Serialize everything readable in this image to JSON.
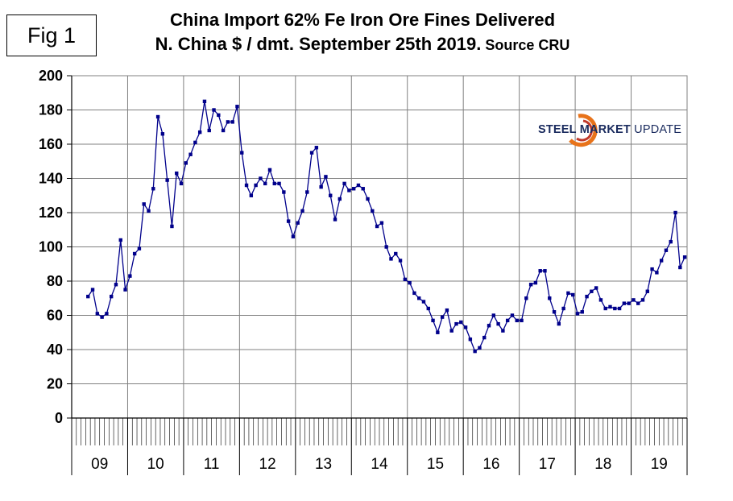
{
  "fig_label": "Fig 1",
  "logo": {
    "part1": "STEEL MARKET",
    "part2": " UPDATE"
  },
  "chart_data": {
    "type": "line",
    "title_line1": "China Import 62% Fe Iron Ore Fines Delivered",
    "title_line2": "N. China $ / dmt. September 25th 2019.",
    "title_source": " Source CRU",
    "xlabel": "",
    "ylabel": "",
    "ylim": [
      0,
      200
    ],
    "yticks": [
      0,
      20,
      40,
      60,
      80,
      100,
      120,
      140,
      160,
      180,
      200
    ],
    "year_labels": [
      "09",
      "10",
      "11",
      "12",
      "13",
      "14",
      "15",
      "16",
      "17",
      "18",
      "19"
    ],
    "grid": true,
    "line_color": "#00008b",
    "series": [
      {
        "name": "62% Fe Iron Ore Fines",
        "values": [
          71,
          75,
          61,
          59,
          61,
          71,
          78,
          104,
          75,
          83,
          96,
          99,
          125,
          121,
          134,
          176,
          166,
          139,
          112,
          143,
          137,
          149,
          154,
          161,
          167,
          185,
          168,
          180,
          177,
          168,
          173,
          173,
          182,
          155,
          136,
          130,
          136,
          140,
          137,
          145,
          137,
          137,
          132,
          115,
          106,
          114,
          121,
          132,
          155,
          158,
          135,
          141,
          130,
          116,
          128,
          137,
          133,
          134,
          136,
          134,
          128,
          121,
          112,
          114,
          100,
          93,
          96,
          92,
          81,
          79,
          73,
          70,
          68,
          64,
          57,
          50,
          59,
          63,
          51,
          55,
          56,
          53,
          46,
          39,
          41,
          47,
          54,
          60,
          55,
          51,
          57,
          60,
          57,
          57,
          70,
          78,
          79,
          86,
          86,
          70,
          62,
          55,
          64,
          73,
          72,
          61,
          62,
          71,
          74,
          76,
          69,
          64,
          65,
          64,
          64,
          67,
          67,
          69,
          67,
          69,
          74,
          87,
          85,
          92,
          98,
          103,
          120,
          88,
          94
        ]
      }
    ]
  }
}
